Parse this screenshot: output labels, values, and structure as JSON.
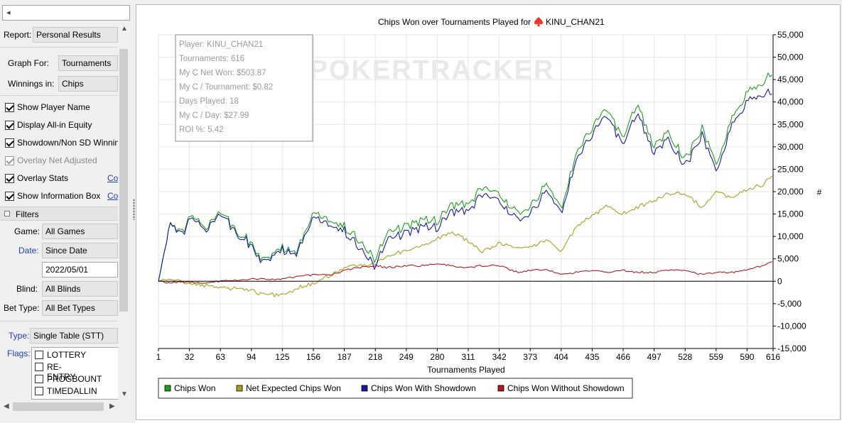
{
  "top_input": {
    "value": ""
  },
  "filters": {
    "report": {
      "label": "Report:",
      "value": "Personal Results"
    },
    "graph_for": {
      "label": "Graph For:",
      "value": "Tournaments"
    },
    "winnings_in": {
      "label": "Winnings in:",
      "value": "Chips"
    },
    "checkboxes": [
      {
        "label": "Show Player Name",
        "checked": true,
        "disabled": false,
        "link": ""
      },
      {
        "label": "Display All-in Equity",
        "checked": true,
        "disabled": false,
        "link": ""
      },
      {
        "label": "Showdown/Non SD Winnings",
        "checked": true,
        "disabled": false,
        "link": ""
      },
      {
        "label": "Overlay Net Adjusted",
        "checked": true,
        "disabled": true,
        "link": ""
      },
      {
        "label": "Overlay Stats",
        "checked": true,
        "disabled": false,
        "link": "Co"
      },
      {
        "label": "Show Information Box",
        "checked": true,
        "disabled": false,
        "link": "Co"
      }
    ],
    "filters_header": "Filters",
    "game": {
      "label": "Game:",
      "value": "All Games"
    },
    "date": {
      "label": "Date:",
      "value": "Since Date",
      "date_value": "2022/05/01"
    },
    "blind": {
      "label": "Blind:",
      "value": "All Blinds"
    },
    "bet_type": {
      "label": "Bet Type:",
      "value": "All Bet Types"
    },
    "type": {
      "label": "Type:",
      "value": "Single Table (STT)"
    },
    "flags": {
      "label": "Flags:",
      "items": [
        "LOTTERY",
        "RE-ENTRY",
        "PROGBOUNT",
        "TIMEDALLIN"
      ]
    }
  },
  "chart": {
    "title_prefix": "Chips Won over Tournaments Played for",
    "player": "KINU_CHAN21",
    "watermark": "POKERTRACKER",
    "y_axis_symbol": "#",
    "info_box": [
      "Player: KINU_CHAN21",
      "Tournaments: 616",
      "My C Net Won: $503.87",
      "My C / Tournament: $0.82",
      "Days Played: 18",
      "My C / Day: $27.99",
      "ROI %: 5.42"
    ],
    "legend": [
      {
        "name": "Chips Won",
        "color": "#1e9e1e"
      },
      {
        "name": "Net Expected Chips Won",
        "color": "#a8a020"
      },
      {
        "name": "Chips Won With Showdown",
        "color": "#1a1aa0"
      },
      {
        "name": "Chips Won Without Showdown",
        "color": "#b01c1c"
      }
    ]
  },
  "chart_data": {
    "type": "line",
    "title": "Chips Won over Tournaments Played for KINU_CHAN21",
    "xlabel": "Tournaments Played",
    "ylabel": "",
    "xlim": [
      1,
      616
    ],
    "ylim": [
      -15000,
      55000
    ],
    "x_ticks": [
      "1",
      "32",
      "63",
      "94",
      "125",
      "156",
      "187",
      "218",
      "249",
      "280",
      "311",
      "342",
      "373",
      "404",
      "435",
      "466",
      "497",
      "528",
      "559",
      "590",
      "616"
    ],
    "y_ticks": [
      "55,000",
      "50,000",
      "45,000",
      "40,000",
      "35,000",
      "30,000",
      "25,000",
      "20,000",
      "15,000",
      "10,000",
      "5,000",
      "0",
      "-5,000",
      "-10,000",
      "-15,000"
    ],
    "grid": true,
    "legend_position": "bottom",
    "x": [
      1,
      12,
      25,
      32,
      50,
      63,
      80,
      94,
      105,
      125,
      140,
      156,
      175,
      187,
      200,
      218,
      230,
      249,
      265,
      280,
      295,
      311,
      325,
      342,
      360,
      373,
      390,
      404,
      420,
      435,
      450,
      466,
      480,
      497,
      510,
      528,
      545,
      559,
      575,
      590,
      605,
      616
    ],
    "series": [
      {
        "name": "Chips Won",
        "values": [
          0,
          12500,
          11500,
          14500,
          12000,
          16500,
          11000,
          8500,
          4500,
          7500,
          6500,
          15500,
          13000,
          12500,
          9500,
          5000,
          11000,
          12500,
          14000,
          13500,
          17500,
          17000,
          21000,
          19000,
          15500,
          16500,
          22000,
          16000,
          29000,
          34500,
          38500,
          32000,
          39500,
          30000,
          33500,
          27000,
          34500,
          26000,
          36500,
          42000,
          44000,
          46500
        ]
      },
      {
        "name": "Net Expected Chips Won",
        "values": [
          0,
          500,
          0,
          -500,
          -1000,
          -1500,
          -1500,
          -2000,
          -3000,
          -3000,
          -1500,
          -500,
          1500,
          3000,
          3500,
          4000,
          5500,
          7000,
          8000,
          9500,
          11000,
          9000,
          6500,
          8500,
          7500,
          7500,
          9500,
          6500,
          12500,
          14500,
          17000,
          15000,
          16500,
          18000,
          19500,
          19500,
          16500,
          20000,
          18500,
          20500,
          21500,
          24000
        ]
      },
      {
        "name": "Chips Won With Showdown",
        "values": [
          0,
          12500,
          11000,
          14000,
          11500,
          16000,
          10500,
          8000,
          4000,
          7000,
          6000,
          14500,
          12000,
          11500,
          8000,
          3500,
          9500,
          11000,
          12500,
          12000,
          16000,
          15500,
          19500,
          17500,
          14000,
          15000,
          20500,
          15000,
          27500,
          33000,
          37000,
          30500,
          37500,
          28500,
          32000,
          25500,
          33000,
          24500,
          35000,
          40000,
          41500,
          42000
        ]
      },
      {
        "name": "Chips Won Without Showdown",
        "values": [
          0,
          -300,
          0,
          -200,
          -400,
          0,
          200,
          500,
          500,
          500,
          1000,
          1500,
          1500,
          2500,
          3000,
          3500,
          3000,
          3500,
          3500,
          4000,
          3500,
          3000,
          3500,
          3500,
          2000,
          2500,
          2500,
          1500,
          2000,
          2500,
          2000,
          2500,
          2000,
          2000,
          2500,
          2500,
          1500,
          2000,
          2000,
          2500,
          3500,
          4500
        ]
      }
    ]
  }
}
